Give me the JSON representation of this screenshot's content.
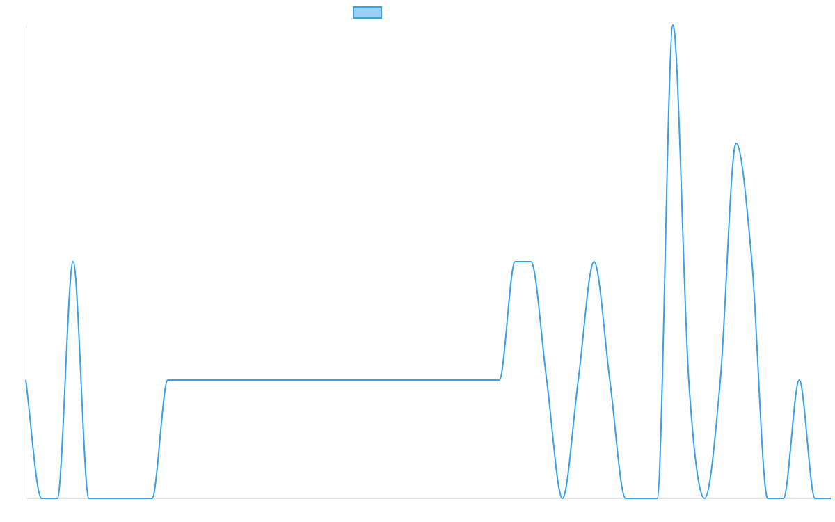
{
  "chart_data": {
    "type": "line",
    "legend": {
      "placement": "top-center",
      "swatch_fill": "#9ad0f5",
      "swatch_stroke": "#36a2eb"
    },
    "series": [
      {
        "color": "#36a2eb",
        "values": [
          1,
          0,
          0,
          2,
          0,
          0,
          0,
          0,
          0,
          1,
          1,
          1,
          1,
          1,
          1,
          1,
          1,
          1,
          1,
          1,
          1,
          1,
          1,
          1,
          1,
          1,
          1,
          1,
          1,
          1,
          1,
          2,
          2,
          1,
          0,
          1,
          2,
          1,
          0,
          0,
          0,
          4,
          1,
          0,
          1,
          3,
          2,
          0,
          0,
          1,
          0,
          0
        ]
      }
    ],
    "ylim": [
      0,
      4
    ],
    "grid": false,
    "axes": {
      "color": "#e6e6e6"
    }
  }
}
